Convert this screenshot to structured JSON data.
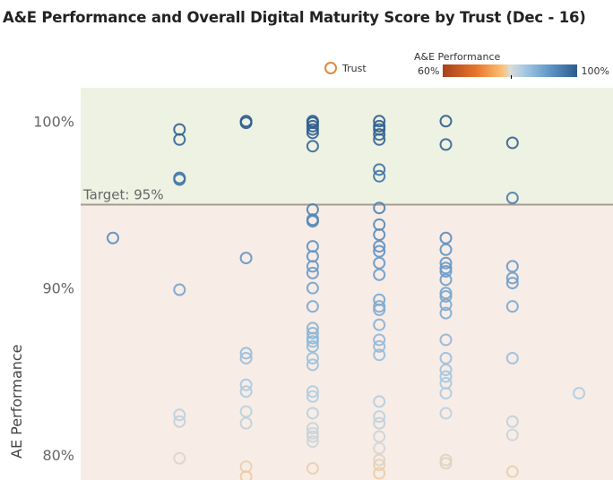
{
  "title": "A&E Performance and Overall Digital Maturity Score by Trust (Dec - 16)",
  "legend": {
    "shape_label": "Trust",
    "color_title": "A&E Performance",
    "color_min": "60%",
    "color_max": "100%"
  },
  "chart_data": {
    "type": "scatter",
    "title": "A&E Performance and Overall Digital Maturity Score by Trust (Dec - 16)",
    "ylabel": "AE Performance",
    "xlabel": "",
    "ylim": [
      78.5,
      102
    ],
    "yticks": [
      "80%",
      "90%",
      "100%"
    ],
    "ytick_values": [
      80,
      90,
      100
    ],
    "grid": false,
    "target": {
      "value": 95,
      "label": "Target: 95%"
    },
    "bands": {
      "above_target": "#eef2e3",
      "below_target": "#f8ece6"
    },
    "color_scale": {
      "min": 60,
      "mid": 80,
      "max": 100,
      "colors": [
        "#a8401c",
        "#dcdcd6",
        "#2c5b8c"
      ]
    },
    "series": [
      {
        "name": "Trust",
        "points": [
          {
            "x": 1,
            "y": 93.0
          },
          {
            "x": 2,
            "y": 99.5
          },
          {
            "x": 2,
            "y": 98.9
          },
          {
            "x": 2,
            "y": 96.6
          },
          {
            "x": 2,
            "y": 96.5
          },
          {
            "x": 2,
            "y": 89.9
          },
          {
            "x": 2,
            "y": 82.4
          },
          {
            "x": 2,
            "y": 82.0
          },
          {
            "x": 2,
            "y": 79.8
          },
          {
            "x": 3,
            "y": 100.0
          },
          {
            "x": 3,
            "y": 99.9
          },
          {
            "x": 3,
            "y": 91.8
          },
          {
            "x": 3,
            "y": 86.1
          },
          {
            "x": 3,
            "y": 85.8
          },
          {
            "x": 3,
            "y": 84.2
          },
          {
            "x": 3,
            "y": 83.8
          },
          {
            "x": 3,
            "y": 82.6
          },
          {
            "x": 3,
            "y": 81.9
          },
          {
            "x": 3,
            "y": 79.3
          },
          {
            "x": 3,
            "y": 78.7
          },
          {
            "x": 4,
            "y": 100.0
          },
          {
            "x": 4,
            "y": 99.9
          },
          {
            "x": 4,
            "y": 99.7
          },
          {
            "x": 4,
            "y": 99.5
          },
          {
            "x": 4,
            "y": 99.3
          },
          {
            "x": 4,
            "y": 98.5
          },
          {
            "x": 4,
            "y": 94.7
          },
          {
            "x": 4,
            "y": 94.1
          },
          {
            "x": 4,
            "y": 94.0
          },
          {
            "x": 4,
            "y": 92.5
          },
          {
            "x": 4,
            "y": 91.9
          },
          {
            "x": 4,
            "y": 91.3
          },
          {
            "x": 4,
            "y": 90.9
          },
          {
            "x": 4,
            "y": 90.0
          },
          {
            "x": 4,
            "y": 88.9
          },
          {
            "x": 4,
            "y": 87.6
          },
          {
            "x": 4,
            "y": 87.3
          },
          {
            "x": 4,
            "y": 87.0
          },
          {
            "x": 4,
            "y": 86.8
          },
          {
            "x": 4,
            "y": 86.5
          },
          {
            "x": 4,
            "y": 85.8
          },
          {
            "x": 4,
            "y": 85.4
          },
          {
            "x": 4,
            "y": 83.8
          },
          {
            "x": 4,
            "y": 83.5
          },
          {
            "x": 4,
            "y": 82.5
          },
          {
            "x": 4,
            "y": 81.6
          },
          {
            "x": 4,
            "y": 81.3
          },
          {
            "x": 4,
            "y": 81.1
          },
          {
            "x": 4,
            "y": 80.8
          },
          {
            "x": 4,
            "y": 79.2
          },
          {
            "x": 5,
            "y": 100.0
          },
          {
            "x": 5,
            "y": 99.7
          },
          {
            "x": 5,
            "y": 99.5
          },
          {
            "x": 5,
            "y": 99.2
          },
          {
            "x": 5,
            "y": 98.9
          },
          {
            "x": 5,
            "y": 97.1
          },
          {
            "x": 5,
            "y": 96.7
          },
          {
            "x": 5,
            "y": 94.8
          },
          {
            "x": 5,
            "y": 93.8
          },
          {
            "x": 5,
            "y": 93.2
          },
          {
            "x": 5,
            "y": 92.5
          },
          {
            "x": 5,
            "y": 92.2
          },
          {
            "x": 5,
            "y": 91.5
          },
          {
            "x": 5,
            "y": 90.8
          },
          {
            "x": 5,
            "y": 89.3
          },
          {
            "x": 5,
            "y": 88.9
          },
          {
            "x": 5,
            "y": 88.7
          },
          {
            "x": 5,
            "y": 87.8
          },
          {
            "x": 5,
            "y": 86.9
          },
          {
            "x": 5,
            "y": 86.5
          },
          {
            "x": 5,
            "y": 86.0
          },
          {
            "x": 5,
            "y": 83.2
          },
          {
            "x": 5,
            "y": 82.3
          },
          {
            "x": 5,
            "y": 81.9
          },
          {
            "x": 5,
            "y": 81.1
          },
          {
            "x": 5,
            "y": 80.4
          },
          {
            "x": 5,
            "y": 79.7
          },
          {
            "x": 5,
            "y": 79.4
          },
          {
            "x": 5,
            "y": 78.9
          },
          {
            "x": 6,
            "y": 100.0
          },
          {
            "x": 6,
            "y": 98.6
          },
          {
            "x": 6,
            "y": 93.0
          },
          {
            "x": 6,
            "y": 92.3
          },
          {
            "x": 6,
            "y": 91.5
          },
          {
            "x": 6,
            "y": 91.2
          },
          {
            "x": 6,
            "y": 91.0
          },
          {
            "x": 6,
            "y": 90.5
          },
          {
            "x": 6,
            "y": 89.7
          },
          {
            "x": 6,
            "y": 89.5
          },
          {
            "x": 6,
            "y": 89.0
          },
          {
            "x": 6,
            "y": 88.5
          },
          {
            "x": 6,
            "y": 86.9
          },
          {
            "x": 6,
            "y": 85.8
          },
          {
            "x": 6,
            "y": 85.1
          },
          {
            "x": 6,
            "y": 84.7
          },
          {
            "x": 6,
            "y": 84.3
          },
          {
            "x": 6,
            "y": 83.7
          },
          {
            "x": 6,
            "y": 82.5
          },
          {
            "x": 6,
            "y": 79.7
          },
          {
            "x": 6,
            "y": 79.5
          },
          {
            "x": 7,
            "y": 98.7
          },
          {
            "x": 7,
            "y": 95.4
          },
          {
            "x": 7,
            "y": 91.3
          },
          {
            "x": 7,
            "y": 90.6
          },
          {
            "x": 7,
            "y": 90.3
          },
          {
            "x": 7,
            "y": 88.9
          },
          {
            "x": 7,
            "y": 85.8
          },
          {
            "x": 7,
            "y": 82.0
          },
          {
            "x": 7,
            "y": 81.2
          },
          {
            "x": 7,
            "y": 79.0
          },
          {
            "x": 8,
            "y": 83.7
          }
        ]
      }
    ]
  }
}
